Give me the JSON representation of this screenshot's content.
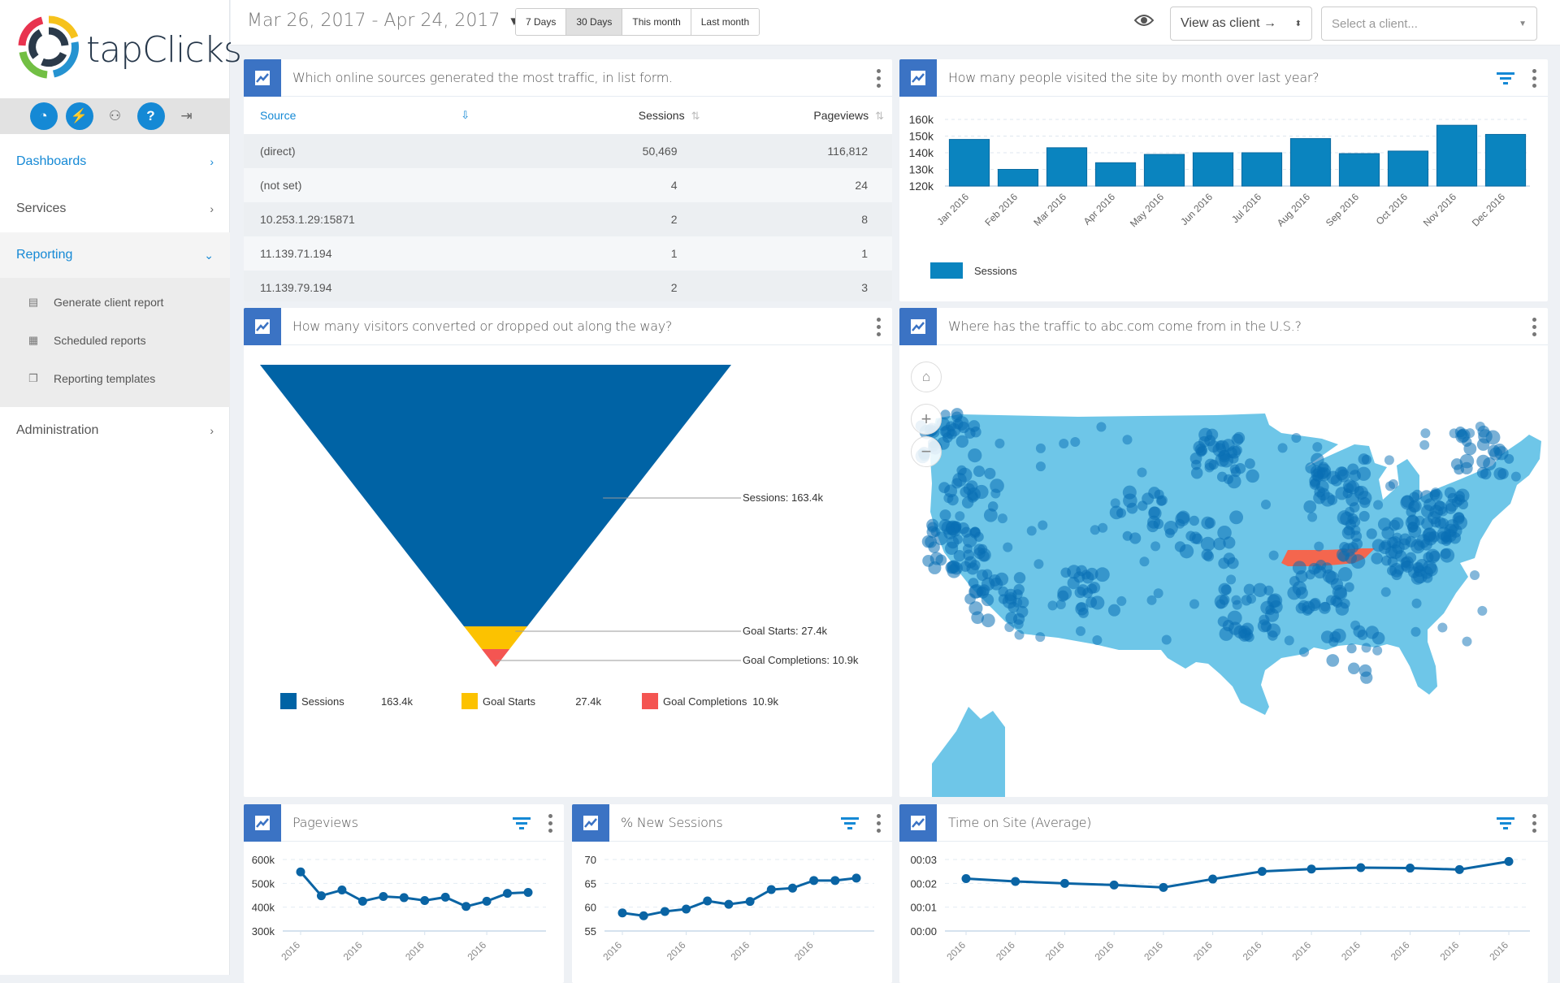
{
  "app": {
    "brand": "tapClicks"
  },
  "sidebar": {
    "icons": [
      "dashboard-gauge-icon",
      "plug-icon",
      "user-settings-icon",
      "help-icon",
      "logout-icon"
    ],
    "items": [
      {
        "label": "Dashboards",
        "active": true
      },
      {
        "label": "Services",
        "active": false
      },
      {
        "label": "Reporting",
        "active": true,
        "expanded": true,
        "children": [
          {
            "label": "Generate client report",
            "icon": "report-icon"
          },
          {
            "label": "Scheduled reports",
            "icon": "calendar-icon"
          },
          {
            "label": "Reporting templates",
            "icon": "templates-icon"
          }
        ]
      },
      {
        "label": "Administration",
        "active": false
      }
    ]
  },
  "topbar": {
    "date_range": "Mar 26, 2017 - Apr 24, 2017",
    "range_buttons": [
      {
        "label": "7 Days",
        "selected": false
      },
      {
        "label": "30 Days",
        "selected": true
      },
      {
        "label": "This month",
        "selected": false
      },
      {
        "label": "Last month",
        "selected": false
      }
    ],
    "view_as": "View as client →",
    "client_placeholder": "Select a client..."
  },
  "widgets": {
    "sources": {
      "title": "Which online sources generated the most traffic, in list form.",
      "columns": [
        "Source",
        "Sessions",
        "Pageviews"
      ],
      "rows": [
        [
          "(direct)",
          "50,469",
          "116,812"
        ],
        [
          "(not set)",
          "4",
          "24"
        ],
        [
          "10.253.1.29:15871",
          "2",
          "8"
        ],
        [
          "11.139.71.194",
          "1",
          "1"
        ],
        [
          "11.139.79.194",
          "2",
          "3"
        ]
      ]
    },
    "monthly": {
      "title": "How many people visited the site by month over last year?"
    },
    "funnel": {
      "title": "How many visitors converted or dropped out along the way?"
    },
    "map": {
      "title": "Where has the traffic to abc.com come from in the U.S.?",
      "highlighted_state": "Tennessee",
      "colors": {
        "land": "#6ec6e8",
        "dots": "#0a6fb5",
        "highlight": "#f4664e"
      }
    },
    "pageviews": {
      "title": "Pageviews"
    },
    "new_sessions": {
      "title": "% New Sessions"
    },
    "time_on_site": {
      "title": "Time on Site (Average)"
    }
  },
  "chart_data": [
    {
      "id": "monthly",
      "type": "bar",
      "title": "How many people visited the site by month over last year?",
      "categories": [
        "Jan 2016",
        "Feb 2016",
        "Mar 2016",
        "Apr 2016",
        "May 2016",
        "Jun 2016",
        "Jul 2016",
        "Aug 2016",
        "Sep 2016",
        "Oct 2016",
        "Nov 2016",
        "Dec 2016"
      ],
      "series": [
        {
          "name": "Sessions",
          "values": [
            148000,
            130000,
            143000,
            134000,
            139000,
            140000,
            140000,
            148500,
            139500,
            141000,
            156500,
            151000
          ],
          "color": "#0a84bf"
        }
      ],
      "yticks": [
        "120k",
        "130k",
        "140k",
        "150k",
        "160k"
      ],
      "ylim": [
        120000,
        160000
      ],
      "legend": "bottom-left",
      "grid": true
    },
    {
      "id": "funnel",
      "type": "funnel",
      "stages": [
        {
          "name": "Sessions",
          "value": 163400,
          "label": "163.4k",
          "callout": "Sessions: 163.4k",
          "color": "#0063a5"
        },
        {
          "name": "Goal Starts",
          "value": 27400,
          "label": "27.4k",
          "callout": "Goal Starts: 27.4k",
          "color": "#fcc200"
        },
        {
          "name": "Goal Completions",
          "value": 10900,
          "label": "10.9k",
          "callout": "Goal Completions: 10.9k",
          "color": "#f45552"
        }
      ],
      "legend": "bottom"
    },
    {
      "id": "pageviews",
      "type": "line",
      "title": "Pageviews",
      "x_labels": [
        "2016",
        "",
        "",
        "2016",
        "",
        "",
        "2016",
        "",
        "",
        "2016",
        "",
        ""
      ],
      "series": [
        {
          "name": "Pageviews",
          "values": [
            548000,
            448000,
            472000,
            425000,
            445000,
            440000,
            428000,
            442000,
            403000,
            425000,
            458000,
            462000
          ]
        }
      ],
      "yticks": [
        "300k",
        "400k",
        "500k",
        "600k"
      ],
      "ylim": [
        300000,
        600000
      ],
      "grid": true
    },
    {
      "id": "new_sessions",
      "type": "line",
      "title": "% New Sessions",
      "x_labels": [
        "2016",
        "",
        "",
        "2016",
        "",
        "",
        "2016",
        "",
        "",
        "2016",
        "",
        ""
      ],
      "series": [
        {
          "name": "% New Sessions",
          "values": [
            58.8,
            58.2,
            59.1,
            59.6,
            61.3,
            60.6,
            61.2,
            63.7,
            64.0,
            65.6,
            65.6,
            66.1
          ]
        }
      ],
      "yticks": [
        "55",
        "60",
        "65",
        "70"
      ],
      "ylim": [
        55,
        70
      ],
      "grid": true
    },
    {
      "id": "time_on_site",
      "type": "line",
      "title": "Time on Site (Average)",
      "x_labels": [
        "2016",
        "2016",
        "2016",
        "2016",
        "2016",
        "2016",
        "2016",
        "2016",
        "2016",
        "2016",
        "2016",
        "2016"
      ],
      "series": [
        {
          "name": "Time on Site",
          "values": [
            2.2,
            2.08,
            2.0,
            1.93,
            1.83,
            2.18,
            2.5,
            2.6,
            2.66,
            2.64,
            2.58,
            2.92
          ]
        }
      ],
      "yticks": [
        "00:00",
        "00:01",
        "00:02",
        "00:03"
      ],
      "ylim": [
        0,
        3
      ],
      "grid": true
    }
  ]
}
